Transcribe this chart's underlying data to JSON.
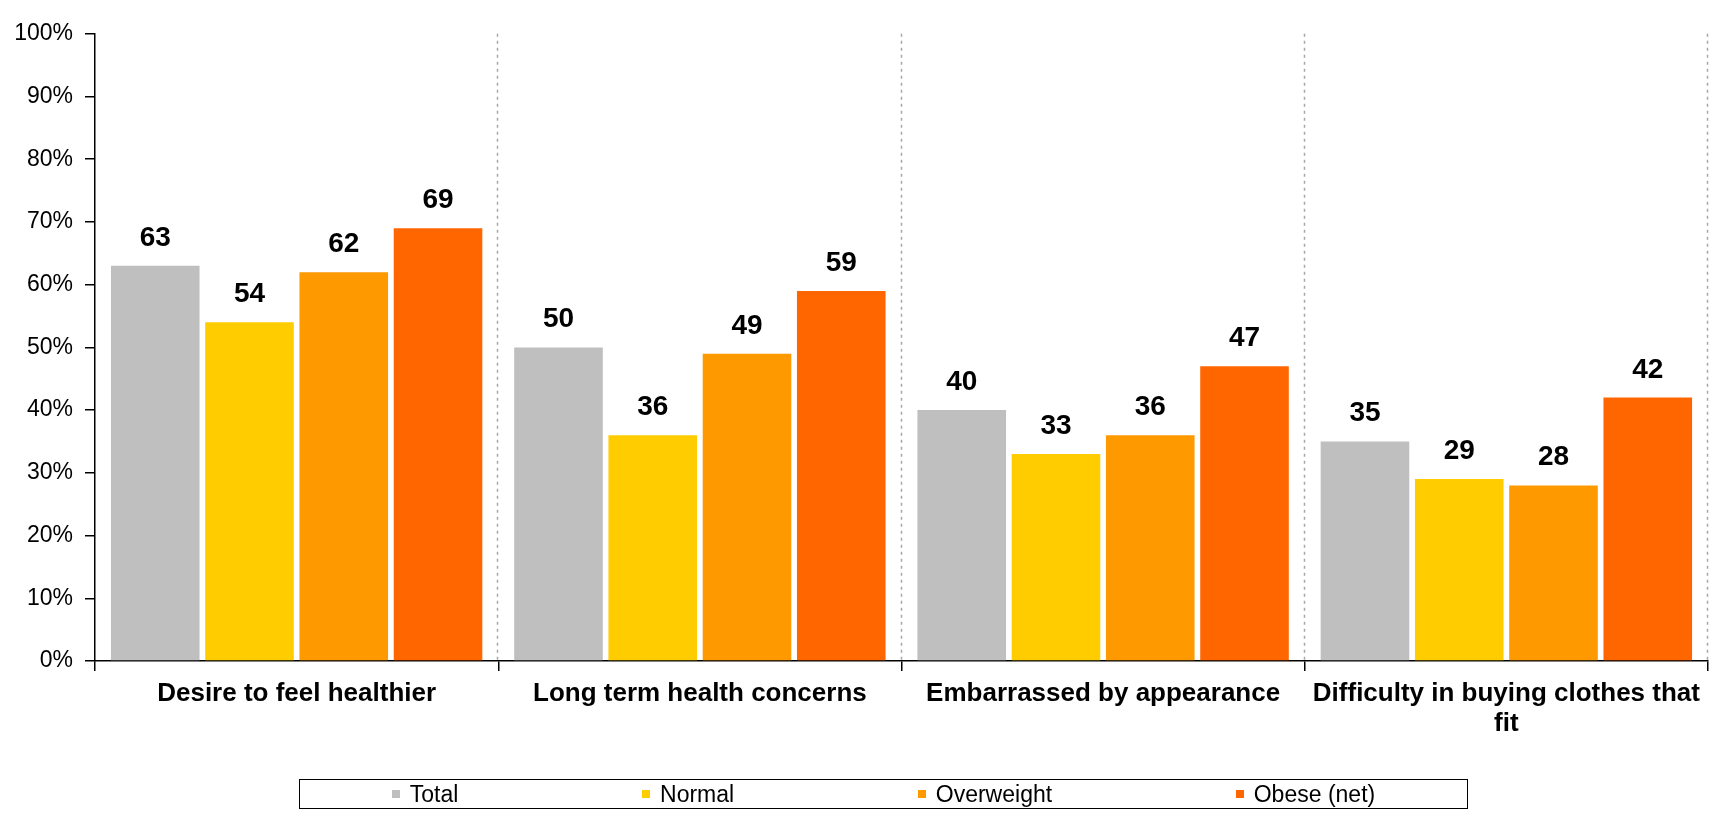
{
  "chart_data": {
    "type": "bar",
    "categories": [
      "Desire to feel healthier",
      "Long term health concerns",
      "Embarrassed by appearance",
      "Difficulty in buying clothes that fit"
    ],
    "series": [
      {
        "name": "Total",
        "color": "#bfbfbf",
        "values": [
          63,
          50,
          40,
          35
        ]
      },
      {
        "name": "Normal",
        "color": "#ffcc00",
        "values": [
          54,
          36,
          33,
          29
        ]
      },
      {
        "name": "Overweight",
        "color": "#ff9900",
        "values": [
          62,
          49,
          36,
          28
        ]
      },
      {
        "name": "Obese (net)",
        "color": "#ff6600",
        "values": [
          69,
          59,
          47,
          42
        ]
      }
    ],
    "ylim": [
      0,
      100
    ],
    "yticks": [
      {
        "value": 0,
        "label": "0%"
      },
      {
        "value": 10,
        "label": "10%"
      },
      {
        "value": 20,
        "label": "20%"
      },
      {
        "value": 30,
        "label": "30%"
      },
      {
        "value": 40,
        "label": "40%"
      },
      {
        "value": 50,
        "label": "50%"
      },
      {
        "value": 60,
        "label": "60%"
      },
      {
        "value": 70,
        "label": "70%"
      },
      {
        "value": 80,
        "label": "80%"
      },
      {
        "value": 90,
        "label": "90%"
      },
      {
        "value": 100,
        "label": "100%"
      }
    ],
    "grid": "x",
    "legend": "bottom",
    "data_labels": true
  }
}
